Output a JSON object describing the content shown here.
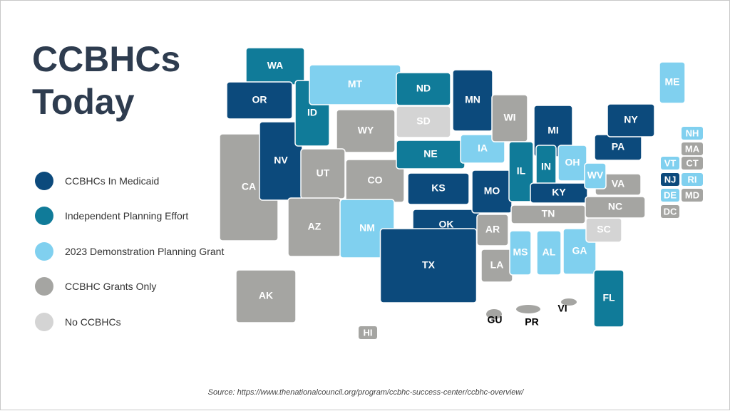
{
  "title": "CCBHCs Today",
  "legend": [
    {
      "label": "CCBHCs In Medicaid",
      "color": "#0c4a7c"
    },
    {
      "label": "Independent Planning Effort",
      "color": "#107b99"
    },
    {
      "label": "2023 Demonstration Planning Grant",
      "color": "#80d0ef"
    },
    {
      "label": "CCBHC Grants Only",
      "color": "#a5a5a2"
    },
    {
      "label": "No CCBHCs",
      "color": "#d4d4d4"
    }
  ],
  "states": [
    {
      "label": "WA",
      "status": 1
    },
    {
      "label": "OR",
      "status": 0
    },
    {
      "label": "CA",
      "status": 3
    },
    {
      "label": "NV",
      "status": 0
    },
    {
      "label": "ID",
      "status": 1
    },
    {
      "label": "MT",
      "status": 2
    },
    {
      "label": "WY",
      "status": 3
    },
    {
      "label": "UT",
      "status": 3
    },
    {
      "label": "CO",
      "status": 3
    },
    {
      "label": "AZ",
      "status": 3
    },
    {
      "label": "NM",
      "status": 2
    },
    {
      "label": "ND",
      "status": 1
    },
    {
      "label": "SD",
      "status": 4
    },
    {
      "label": "NE",
      "status": 1
    },
    {
      "label": "KS",
      "status": 0
    },
    {
      "label": "OK",
      "status": 0
    },
    {
      "label": "TX",
      "status": 0
    },
    {
      "label": "MN",
      "status": 0
    },
    {
      "label": "IA",
      "status": 2
    },
    {
      "label": "MO",
      "status": 0
    },
    {
      "label": "AR",
      "status": 3
    },
    {
      "label": "LA",
      "status": 3
    },
    {
      "label": "WI",
      "status": 3
    },
    {
      "label": "IL",
      "status": 1
    },
    {
      "label": "MI",
      "status": 0
    },
    {
      "label": "IN",
      "status": 1
    },
    {
      "label": "OH",
      "status": 2
    },
    {
      "label": "KY",
      "status": 0
    },
    {
      "label": "TN",
      "status": 3
    },
    {
      "label": "MS",
      "status": 2
    },
    {
      "label": "AL",
      "status": 2
    },
    {
      "label": "GA",
      "status": 2
    },
    {
      "label": "FL",
      "status": 1
    },
    {
      "label": "SC",
      "status": 4
    },
    {
      "label": "NC",
      "status": 3
    },
    {
      "label": "VA",
      "status": 3
    },
    {
      "label": "WV",
      "status": 2
    },
    {
      "label": "PA",
      "status": 0
    },
    {
      "label": "NY",
      "status": 0
    },
    {
      "label": "ME",
      "status": 2
    },
    {
      "label": "AK",
      "status": 3
    },
    {
      "label": "HI",
      "status": 3
    },
    {
      "label": "NH",
      "status": 2
    },
    {
      "label": "MA",
      "status": 3
    },
    {
      "label": "VT",
      "status": 2
    },
    {
      "label": "CT",
      "status": 3
    },
    {
      "label": "NJ",
      "status": 0
    },
    {
      "label": "RI",
      "status": 2
    },
    {
      "label": "DE",
      "status": 2
    },
    {
      "label": "MD",
      "status": 3
    },
    {
      "label": "DC",
      "status": 3
    },
    {
      "label": "GU",
      "status": 3
    },
    {
      "label": "PR",
      "status": 3
    },
    {
      "label": "VI",
      "status": 3
    }
  ],
  "source": "Source: https://www.thenationalcouncil.org/program/ccbhc-success-center/ccbhc-overview/"
}
